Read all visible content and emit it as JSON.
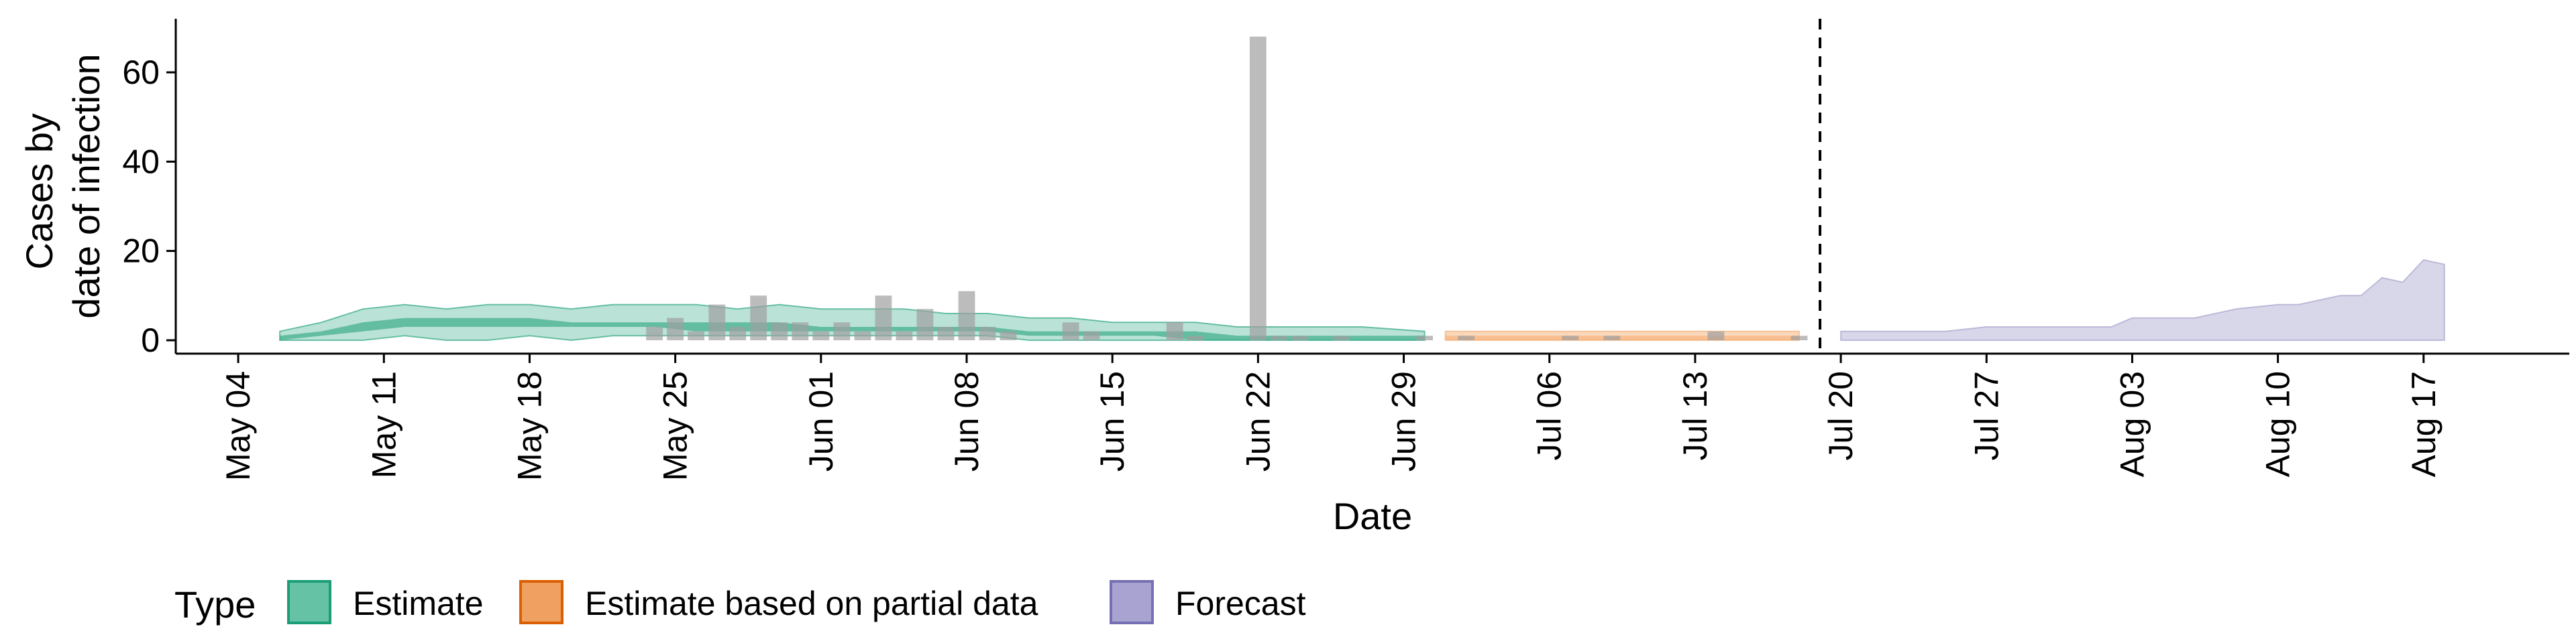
{
  "chart_data": {
    "type": "area",
    "xlabel": "Date",
    "ylabel_lines": [
      "Cases by",
      "date of infection"
    ],
    "xlim": [
      "2020-05-01",
      "2020-08-24"
    ],
    "ylim": [
      -3,
      72
    ],
    "yticks": [
      0,
      20,
      40,
      60
    ],
    "xticks": [
      {
        "date": "2020-05-04",
        "label": "May 04"
      },
      {
        "date": "2020-05-11",
        "label": "May 11"
      },
      {
        "date": "2020-05-18",
        "label": "May 18"
      },
      {
        "date": "2020-05-25",
        "label": "May 25"
      },
      {
        "date": "2020-06-01",
        "label": "Jun 01"
      },
      {
        "date": "2020-06-08",
        "label": "Jun 08"
      },
      {
        "date": "2020-06-15",
        "label": "Jun 15"
      },
      {
        "date": "2020-06-22",
        "label": "Jun 22"
      },
      {
        "date": "2020-06-29",
        "label": "Jun 29"
      },
      {
        "date": "2020-07-06",
        "label": "Jul 06"
      },
      {
        "date": "2020-07-13",
        "label": "Jul 13"
      },
      {
        "date": "2020-07-20",
        "label": "Jul 20"
      },
      {
        "date": "2020-07-27",
        "label": "Jul 27"
      },
      {
        "date": "2020-08-03",
        "label": "Aug 03"
      },
      {
        "date": "2020-08-10",
        "label": "Aug 10"
      },
      {
        "date": "2020-08-17",
        "label": "Aug 17"
      }
    ],
    "vline_date": "2020-07-19",
    "grid": false,
    "legend": {
      "title": "Type",
      "position": "bottom-left",
      "items": [
        {
          "label": "Estimate",
          "fill": "#66c2a5",
          "stroke": "#1b9e77"
        },
        {
          "label": "Estimate based on partial data",
          "fill": "#f0a060",
          "stroke": "#d95f02"
        },
        {
          "label": "Forecast",
          "fill": "#a9a3d2",
          "stroke": "#7570b3"
        }
      ]
    },
    "colors": {
      "bars": "#a0a0a0",
      "estimate": "#1b9e77",
      "partial": "#f5a96b",
      "forecast": "#9e9ac8"
    },
    "observed_cases": {
      "dates": [
        "2020-05-24",
        "2020-05-25",
        "2020-05-26",
        "2020-05-27",
        "2020-05-28",
        "2020-05-29",
        "2020-05-30",
        "2020-05-31",
        "2020-06-01",
        "2020-06-02",
        "2020-06-03",
        "2020-06-04",
        "2020-06-05",
        "2020-06-06",
        "2020-06-07",
        "2020-06-08",
        "2020-06-09",
        "2020-06-10",
        "2020-06-13",
        "2020-06-14",
        "2020-06-18",
        "2020-06-19",
        "2020-06-22",
        "2020-06-23",
        "2020-06-24",
        "2020-06-26",
        "2020-06-30",
        "2020-07-02",
        "2020-07-07",
        "2020-07-09",
        "2020-07-14",
        "2020-07-18"
      ],
      "values": [
        3,
        5,
        2,
        8,
        3,
        10,
        4,
        4,
        2,
        4,
        2,
        10,
        2,
        7,
        3,
        11,
        3,
        2,
        4,
        2,
        4,
        1,
        68,
        1,
        1,
        1,
        1,
        1,
        1,
        1,
        2,
        1
      ]
    },
    "series": [
      {
        "name": "Estimate",
        "dates": [
          "2020-05-06",
          "2020-05-08",
          "2020-05-10",
          "2020-05-12",
          "2020-05-14",
          "2020-05-16",
          "2020-05-18",
          "2020-05-20",
          "2020-05-22",
          "2020-05-24",
          "2020-05-26",
          "2020-05-28",
          "2020-05-30",
          "2020-06-01",
          "2020-06-03",
          "2020-06-05",
          "2020-06-07",
          "2020-06-09",
          "2020-06-11",
          "2020-06-13",
          "2020-06-15",
          "2020-06-17",
          "2020-06-19",
          "2020-06-21",
          "2020-06-23",
          "2020-06-25",
          "2020-06-27",
          "2020-06-30"
        ],
        "lower90": [
          0,
          0,
          0,
          1,
          0,
          0,
          1,
          0,
          1,
          1,
          1,
          1,
          1,
          1,
          1,
          1,
          1,
          1,
          0,
          0,
          0,
          0,
          0,
          0,
          0,
          0,
          0,
          0
        ],
        "upper90": [
          2,
          4,
          7,
          8,
          7,
          8,
          8,
          7,
          8,
          8,
          8,
          7,
          8,
          7,
          7,
          7,
          6,
          6,
          5,
          5,
          4,
          4,
          4,
          3,
          3,
          3,
          3,
          2
        ],
        "lower50": [
          0,
          1,
          2,
          3,
          3,
          3,
          3,
          3,
          3,
          3,
          2,
          2,
          2,
          2,
          2,
          2,
          2,
          2,
          1,
          1,
          1,
          1,
          0,
          0,
          0,
          0,
          0,
          0
        ],
        "upper50": [
          1,
          2,
          4,
          5,
          5,
          5,
          5,
          4,
          4,
          4,
          4,
          4,
          4,
          3,
          3,
          3,
          3,
          3,
          2,
          2,
          2,
          2,
          2,
          1,
          1,
          1,
          1,
          1
        ]
      },
      {
        "name": "Estimate based on partial data",
        "dates": [
          "2020-07-01",
          "2020-07-18"
        ],
        "lower90": [
          0,
          0
        ],
        "upper90": [
          2,
          2
        ],
        "lower50": [
          0,
          0
        ],
        "upper50": [
          1,
          1
        ]
      },
      {
        "name": "Forecast",
        "dates": [
          "2020-07-20",
          "2020-07-25",
          "2020-07-27",
          "2020-08-02",
          "2020-08-03",
          "2020-08-06",
          "2020-08-08",
          "2020-08-10",
          "2020-08-11",
          "2020-08-13",
          "2020-08-14",
          "2020-08-15",
          "2020-08-16",
          "2020-08-17",
          "2020-08-18"
        ],
        "lower90": [
          0,
          0,
          0,
          0,
          0,
          0,
          0,
          0,
          0,
          0,
          0,
          0,
          0,
          0,
          0
        ],
        "upper90": [
          2,
          2,
          3,
          3,
          5,
          5,
          7,
          8,
          8,
          10,
          10,
          14,
          13,
          18,
          17
        ]
      }
    ]
  }
}
